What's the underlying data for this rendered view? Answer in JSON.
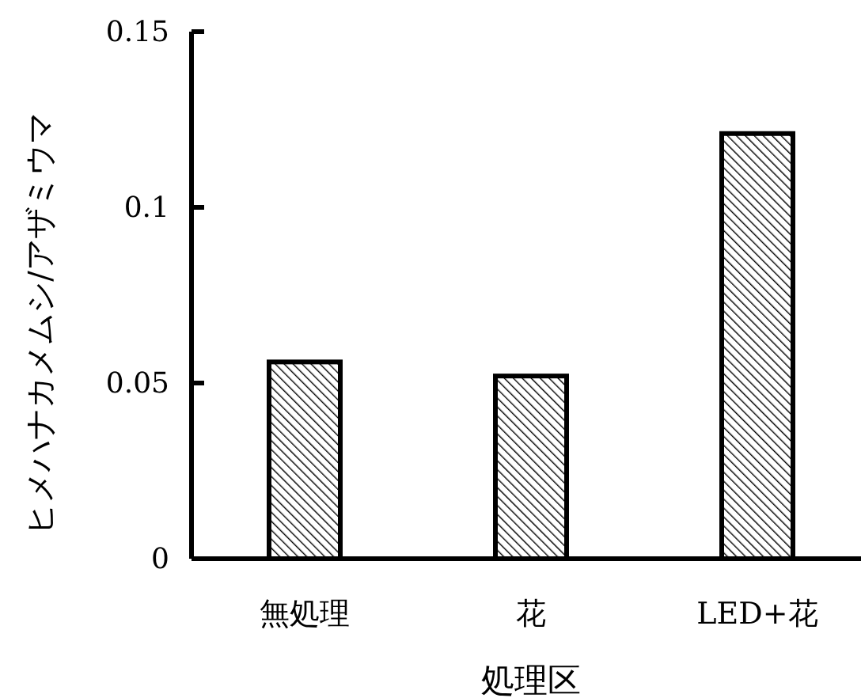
{
  "chart_data": {
    "type": "bar",
    "categories": [
      "無処理",
      "花",
      "LED+花"
    ],
    "values": [
      0.056,
      0.052,
      0.121
    ],
    "color": "#000000",
    "xlabel": "処理区",
    "ylabel": "ヒメハナカメムシ/アザミウマ",
    "ylim": [
      0,
      0.15
    ],
    "yticks": [
      0,
      0.05,
      0.1,
      0.15
    ],
    "grid": false
  }
}
